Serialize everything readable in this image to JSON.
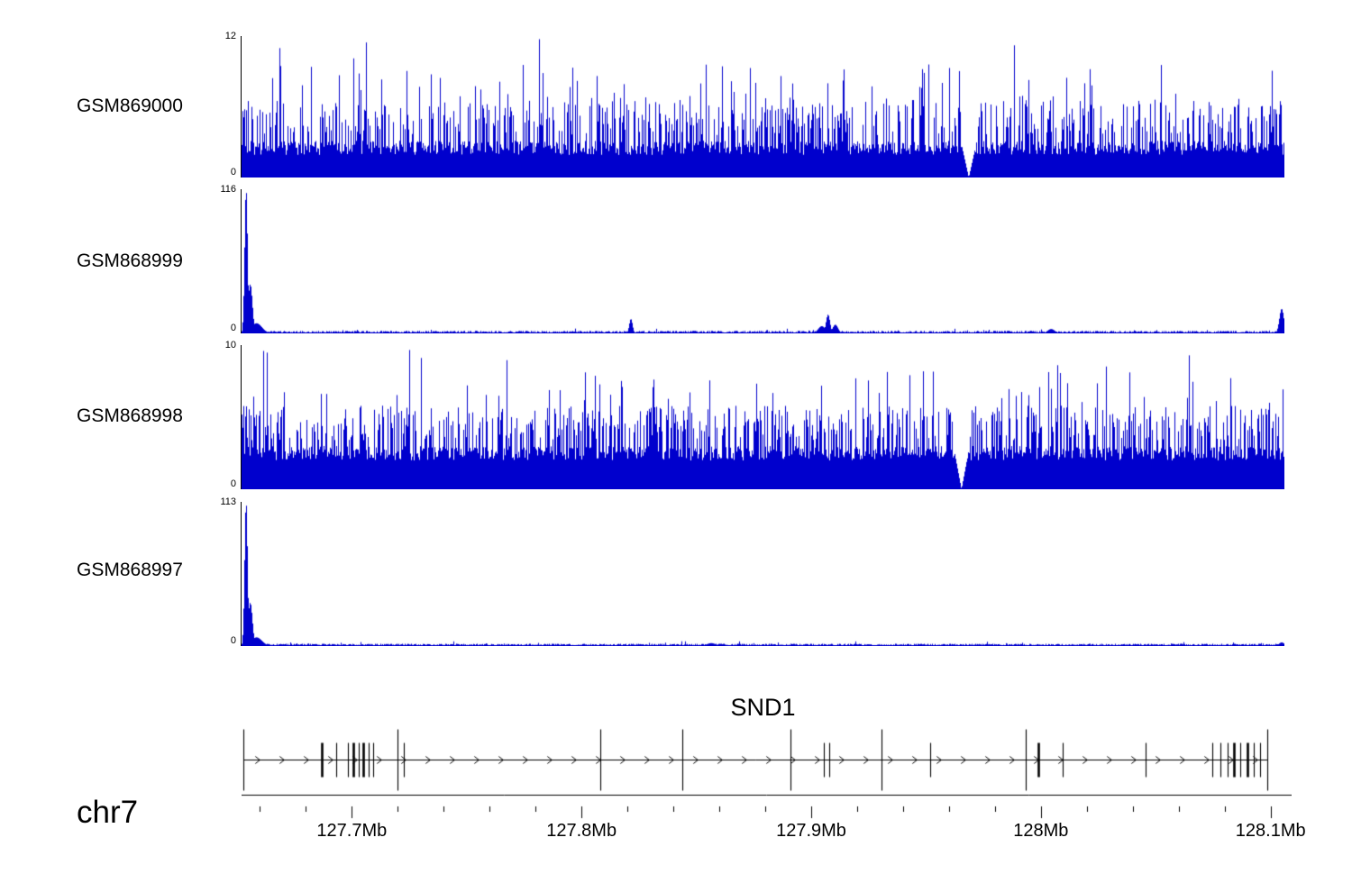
{
  "chart_data": {
    "type": "area",
    "description": "Genome browser read-coverage tracks over chr7 with SND1 gene model and genomic axis",
    "chromosome": "chr7",
    "genomic_range_mb": [
      127.652,
      128.106
    ],
    "track_color": "#0000CD",
    "tracks": [
      {
        "name": "GSM869000",
        "ymin": 0,
        "ymax": 12,
        "ymin_label": "0",
        "ymax_label": "12",
        "style": "dense",
        "color": "#0000CD",
        "seed": 11,
        "band": [
          0.16,
          0.26
        ],
        "spikes": {
          "medium_prob": 0.36,
          "medium": [
            0.3,
            0.55
          ],
          "high_prob": 0.055,
          "high": [
            0.55,
            0.8
          ],
          "max_prob": 0.006,
          "max": [
            0.82,
            1.0
          ]
        },
        "notches": [
          {
            "pos": 0.697,
            "w": 9
          }
        ]
      },
      {
        "name": "GSM868999",
        "ymin": 0,
        "ymax": 116,
        "ymin_label": "0",
        "ymax_label": "116",
        "style": "sparse",
        "color": "#0000CD",
        "seed": 22,
        "noise": [
          0.004,
          0.018
        ],
        "peaks": [
          {
            "pos": 0.004,
            "h": 1.0,
            "w": 1.6
          },
          {
            "pos": 0.008,
            "h": 0.34,
            "w": 2.4
          },
          {
            "pos": 0.014,
            "h": 0.07,
            "w": 6
          },
          {
            "pos": 0.373,
            "h": 0.1,
            "w": 1.8
          },
          {
            "pos": 0.556,
            "h": 0.05,
            "w": 4
          },
          {
            "pos": 0.562,
            "h": 0.13,
            "w": 2.2
          },
          {
            "pos": 0.569,
            "h": 0.06,
            "w": 3
          },
          {
            "pos": 0.776,
            "h": 0.03,
            "w": 4
          },
          {
            "pos": 0.997,
            "h": 0.17,
            "w": 2.5
          }
        ]
      },
      {
        "name": "GSM868998",
        "ymin": 0,
        "ymax": 10,
        "ymin_label": "0",
        "ymax_label": "10",
        "style": "dense",
        "color": "#0000CD",
        "seed": 33,
        "band": [
          0.2,
          0.3
        ],
        "spikes": {
          "medium_prob": 0.4,
          "medium": [
            0.34,
            0.58
          ],
          "high_prob": 0.05,
          "high": [
            0.58,
            0.82
          ],
          "max_prob": 0.006,
          "max": [
            0.85,
            1.0
          ]
        },
        "notches": [
          {
            "pos": 0.69,
            "w": 9
          }
        ]
      },
      {
        "name": "GSM868997",
        "ymin": 0,
        "ymax": 113,
        "ymin_label": "0",
        "ymax_label": "113",
        "style": "sparse",
        "color": "#0000CD",
        "seed": 44,
        "noise": [
          0.004,
          0.016
        ],
        "peaks": [
          {
            "pos": 0.004,
            "h": 1.0,
            "w": 1.6
          },
          {
            "pos": 0.008,
            "h": 0.3,
            "w": 2.4
          },
          {
            "pos": 0.014,
            "h": 0.06,
            "w": 6
          },
          {
            "pos": 0.45,
            "h": 0.02,
            "w": 5
          },
          {
            "pos": 0.997,
            "h": 0.025,
            "w": 3
          }
        ]
      }
    ],
    "gene": {
      "title": "SND1",
      "strand": "right",
      "line_span": [
        0.002,
        0.981
      ],
      "exons": [
        {
          "pos": 0.002,
          "size": "tall",
          "thick": false
        },
        {
          "pos": 0.077,
          "size": "short",
          "thick": true
        },
        {
          "pos": 0.0908,
          "size": "short",
          "thick": false
        },
        {
          "pos": 0.102,
          "size": "short",
          "thick": false
        },
        {
          "pos": 0.1072,
          "size": "short",
          "thick": true
        },
        {
          "pos": 0.1124,
          "size": "short",
          "thick": false
        },
        {
          "pos": 0.1167,
          "size": "short",
          "thick": true
        },
        {
          "pos": 0.1219,
          "size": "short",
          "thick": false
        },
        {
          "pos": 0.1262,
          "size": "short",
          "thick": false
        },
        {
          "pos": 0.1495,
          "size": "tall",
          "thick": false
        },
        {
          "pos": 0.1556,
          "size": "short",
          "thick": false
        },
        {
          "pos": 0.3431,
          "size": "tall",
          "thick": false
        },
        {
          "pos": 0.4218,
          "size": "tall",
          "thick": false
        },
        {
          "pos": 0.5246,
          "size": "tall",
          "thick": false
        },
        {
          "pos": 0.5566,
          "size": "short",
          "thick": false
        },
        {
          "pos": 0.5618,
          "size": "short",
          "thick": false
        },
        {
          "pos": 0.6119,
          "size": "tall",
          "thick": false
        },
        {
          "pos": 0.6586,
          "size": "short",
          "thick": false
        },
        {
          "pos": 0.7502,
          "size": "tall",
          "thick": false
        },
        {
          "pos": 0.7623,
          "size": "short",
          "thick": true
        },
        {
          "pos": 0.7857,
          "size": "short",
          "thick": false
        },
        {
          "pos": 0.8643,
          "size": "short",
          "thick": false
        },
        {
          "pos": 0.9283,
          "size": "short",
          "thick": false
        },
        {
          "pos": 0.9361,
          "size": "short",
          "thick": false
        },
        {
          "pos": 0.943,
          "size": "short",
          "thick": false
        },
        {
          "pos": 0.949,
          "size": "short",
          "thick": true
        },
        {
          "pos": 0.9551,
          "size": "short",
          "thick": false
        },
        {
          "pos": 0.962,
          "size": "short",
          "thick": true
        },
        {
          "pos": 0.9681,
          "size": "short",
          "thick": false
        },
        {
          "pos": 0.9741,
          "size": "short",
          "thick": false
        },
        {
          "pos": 0.981,
          "size": "tall",
          "thick": false
        }
      ]
    },
    "axis": {
      "major_ticks": [
        {
          "value_mb": 127.7,
          "label": "127.7Mb"
        },
        {
          "value_mb": 127.8,
          "label": "127.8Mb"
        },
        {
          "value_mb": 127.9,
          "label": "127.9Mb"
        },
        {
          "value_mb": 128.0,
          "label": "128Mb"
        },
        {
          "value_mb": 128.1,
          "label": "128.1Mb"
        }
      ],
      "minor_tick_interval_mb": 0.02
    }
  }
}
